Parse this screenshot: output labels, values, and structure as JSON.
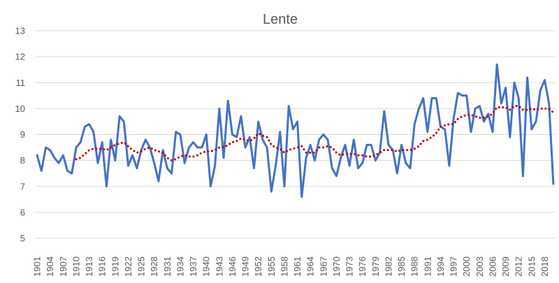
{
  "chart_data": {
    "type": "line",
    "title": "Lente",
    "xlabel": "",
    "ylabel": "",
    "ylim": [
      5,
      13
    ],
    "y_ticks": [
      5,
      6,
      7,
      8,
      9,
      10,
      11,
      12,
      13
    ],
    "grid": true,
    "x_tick_labels": [
      "1901",
      "1904",
      "1907",
      "1910",
      "1913",
      "1916",
      "1919",
      "1922",
      "1925",
      "1928",
      "1931",
      "1934",
      "1937",
      "1940",
      "1943",
      "1946",
      "1949",
      "1952",
      "1955",
      "1958",
      "1961",
      "1964",
      "1967",
      "1970",
      "1973",
      "1976",
      "1979",
      "1982",
      "1985",
      "1988",
      "1991",
      "1994",
      "1997",
      "2000",
      "2003",
      "2006",
      "2009",
      "2012",
      "2015",
      "2018"
    ],
    "x": [
      1901,
      1902,
      1903,
      1904,
      1905,
      1906,
      1907,
      1908,
      1909,
      1910,
      1911,
      1912,
      1913,
      1914,
      1915,
      1916,
      1917,
      1918,
      1919,
      1920,
      1921,
      1922,
      1923,
      1924,
      1925,
      1926,
      1927,
      1928,
      1929,
      1930,
      1931,
      1932,
      1933,
      1934,
      1935,
      1936,
      1937,
      1938,
      1939,
      1940,
      1941,
      1942,
      1943,
      1944,
      1945,
      1946,
      1947,
      1948,
      1949,
      1950,
      1951,
      1952,
      1953,
      1954,
      1955,
      1956,
      1957,
      1958,
      1959,
      1960,
      1961,
      1962,
      1963,
      1964,
      1965,
      1966,
      1967,
      1968,
      1969,
      1970,
      1971,
      1972,
      1973,
      1974,
      1975,
      1976,
      1977,
      1978,
      1979,
      1980,
      1981,
      1982,
      1983,
      1984,
      1985,
      1986,
      1987,
      1988,
      1989,
      1990,
      1991,
      1992,
      1993,
      1994,
      1995,
      1996,
      1997,
      1998,
      1999,
      2000,
      2001,
      2002,
      2003,
      2004,
      2005,
      2006,
      2007,
      2008,
      2009,
      2010,
      2011,
      2012,
      2013,
      2014,
      2015,
      2016,
      2017,
      2018,
      2019,
      2020
    ],
    "series": [
      {
        "style": "solid",
        "color": "#4472c4",
        "values": [
          8.2,
          7.6,
          8.5,
          8.4,
          8.1,
          7.9,
          8.2,
          7.6,
          7.5,
          8.5,
          8.7,
          9.3,
          9.4,
          9.1,
          7.9,
          8.7,
          7.0,
          8.8,
          8.0,
          9.7,
          9.5,
          7.8,
          8.2,
          7.7,
          8.4,
          8.8,
          8.5,
          7.9,
          7.2,
          8.4,
          7.7,
          7.5,
          9.1,
          9.0,
          7.9,
          8.5,
          8.7,
          8.5,
          8.5,
          9.0,
          7.0,
          7.8,
          10.0,
          8.1,
          10.3,
          9.0,
          8.9,
          9.7,
          8.5,
          8.9,
          7.7,
          9.5,
          8.8,
          8.5,
          6.8,
          7.8,
          9.1,
          7.0,
          10.1,
          9.2,
          9.5,
          6.6,
          8.1,
          8.6,
          8.0,
          8.8,
          9.0,
          8.8,
          7.7,
          7.4,
          8.1,
          8.6,
          7.8,
          8.8,
          7.7,
          7.9,
          8.6,
          8.6,
          8.0,
          8.3,
          9.9,
          8.6,
          8.4,
          7.5,
          8.6,
          7.9,
          7.7,
          9.4,
          10.0,
          10.4,
          9.1,
          10.4,
          10.4,
          9.3,
          9.2,
          7.8,
          9.6,
          10.6,
          10.5,
          10.5,
          9.1,
          10.0,
          10.1,
          9.5,
          9.8,
          9.1,
          11.7,
          10.2,
          10.8,
          8.9,
          11.0,
          10.4,
          7.4,
          11.2,
          9.2,
          9.5,
          10.7,
          11.1,
          10.2,
          7.1
        ]
      },
      {
        "style": "dotted",
        "color": "#c00000",
        "values": [
          null,
          null,
          null,
          null,
          null,
          null,
          null,
          null,
          null,
          8.05,
          8.1,
          8.25,
          8.4,
          8.45,
          8.45,
          8.45,
          8.4,
          8.5,
          8.6,
          8.65,
          8.7,
          8.55,
          8.4,
          8.3,
          8.35,
          8.45,
          8.5,
          8.4,
          8.35,
          8.3,
          8.1,
          8.0,
          8.05,
          8.15,
          8.2,
          8.15,
          8.15,
          8.2,
          8.3,
          8.35,
          8.35,
          8.4,
          8.5,
          8.5,
          8.6,
          8.7,
          8.75,
          8.85,
          8.8,
          8.75,
          8.85,
          9.05,
          8.95,
          8.9,
          8.6,
          8.5,
          8.45,
          8.3,
          8.4,
          8.45,
          8.5,
          8.55,
          8.3,
          8.3,
          8.3,
          8.5,
          8.5,
          8.55,
          8.5,
          8.3,
          8.2,
          8.25,
          8.25,
          8.25,
          8.2,
          8.2,
          8.15,
          8.15,
          8.2,
          8.3,
          8.4,
          8.4,
          8.4,
          8.35,
          8.4,
          8.4,
          8.4,
          8.45,
          8.55,
          8.75,
          8.8,
          8.9,
          9.05,
          9.3,
          9.35,
          9.4,
          9.4,
          9.6,
          9.7,
          9.75,
          9.75,
          9.7,
          9.65,
          9.65,
          9.7,
          9.8,
          10.05,
          10.05,
          10.05,
          9.95,
          10.1,
          10.1,
          9.95,
          9.95,
          10.0,
          9.95,
          10.0,
          10.0,
          10.0,
          9.85
        ]
      }
    ]
  }
}
